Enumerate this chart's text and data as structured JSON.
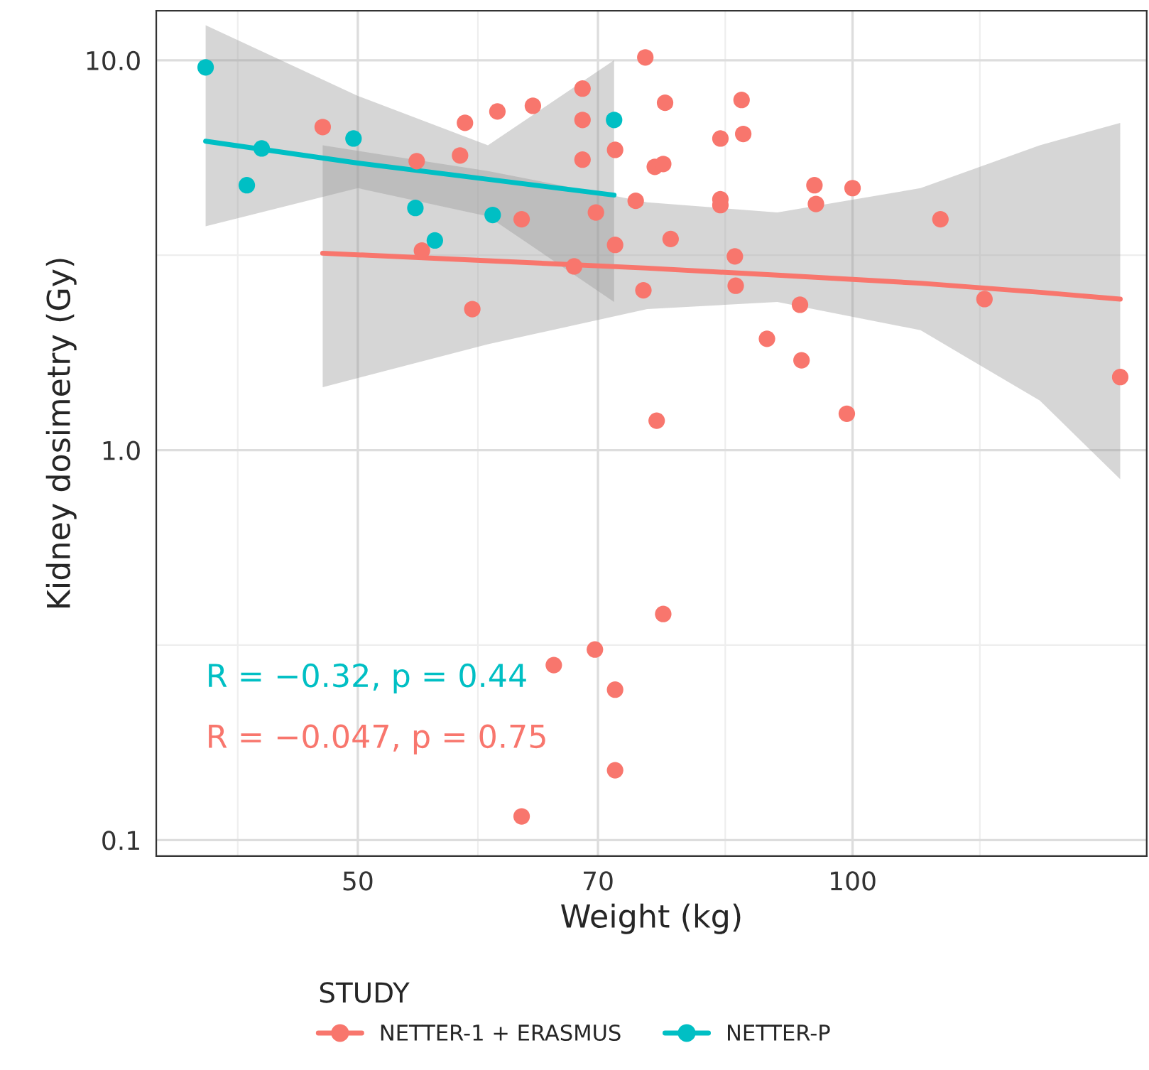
{
  "chart_data": {
    "type": "scatter",
    "xlabel": "Weight (kg)",
    "ylabel": "Kidney dosimetry (Gy)",
    "legend_title": "STUDY",
    "legend": "bottom",
    "log": "xy",
    "grid": true,
    "marker": "circle",
    "xlim": [
      37.7,
      151
    ],
    "ylim": [
      0.091,
      13.4
    ],
    "xticks": [
      50,
      70,
      100
    ],
    "yticks": [
      0.1,
      {
        "value": 1,
        "label": "1.0"
      },
      {
        "value": 10,
        "label": "10.0"
      }
    ],
    "annotations": [
      "R = −0.32, p = 0.44",
      "R = −0.047, p = 0.75"
    ],
    "series": [
      {
        "name": "NETTER-1 + ERASMUS",
        "color": "#f8766d",
        "x": [
          47.6,
          54.3,
          54.7,
          57.7,
          58.1,
          58.7,
          60.8,
          62.9,
          63.9,
          62.9,
          65.8,
          67.7,
          68.5,
          68.5,
          68.5,
          69.7,
          69.8,
          71.7,
          71.7,
          71.7,
          71.7,
          73.8,
          74.6,
          74.8,
          75.8,
          76.0,
          76.7,
          76.9,
          77.5,
          76.7,
          83.1,
          83.1,
          83.1,
          84.8,
          84.9,
          85.6,
          85.8,
          88.7,
          92.9,
          93.1,
          94.8,
          95.0,
          99.2,
          100,
          113.1,
          120.3,
          145.5
        ],
        "values": [
          6.74,
          5.51,
          3.25,
          5.7,
          6.91,
          2.3,
          7.39,
          3.91,
          7.64,
          0.115,
          0.281,
          2.96,
          8.46,
          7.03,
          5.56,
          0.308,
          4.07,
          0.243,
          0.151,
          5.89,
          3.36,
          4.36,
          2.57,
          10.17,
          5.33,
          1.19,
          5.42,
          7.78,
          3.48,
          0.38,
          6.3,
          4.4,
          4.25,
          3.14,
          2.64,
          7.91,
          6.47,
          1.93,
          2.36,
          1.7,
          4.78,
          4.28,
          1.24,
          4.7,
          3.91,
          2.44,
          1.54
        ]
      },
      {
        "name": "NETTER-P",
        "color": "#00bfc4",
        "x": [
          40.4,
          42.8,
          43.7,
          49.7,
          54.2,
          55.7,
          60.4,
          71.6
        ],
        "values": [
          9.59,
          4.78,
          5.94,
          6.3,
          4.18,
          3.45,
          4.01,
          7.03
        ]
      },
      {
        "color": "#f8766d",
        "type": "line",
        "marker": "none",
        "x": [
          47.6,
          60,
          75,
          90,
          110,
          130,
          145.5
        ],
        "values": [
          3.2,
          3.06,
          2.93,
          2.81,
          2.68,
          2.54,
          2.44
        ],
        "lower": [
          1.45,
          1.87,
          2.3,
          2.4,
          2.03,
          1.34,
          0.842
        ],
        "upper": [
          6.05,
          5.2,
          4.32,
          4.07,
          4.7,
          6.05,
          6.91
        ]
      },
      {
        "color": "#00bfc4",
        "type": "line",
        "marker": "none",
        "x": [
          40.4,
          50,
          60,
          71.6
        ],
        "values": [
          6.2,
          5.45,
          4.95,
          4.51
        ],
        "lower": [
          3.75,
          4.7,
          3.98,
          2.4
        ],
        "upper": [
          12.3,
          8.1,
          6.05,
          10.0
        ]
      }
    ]
  }
}
